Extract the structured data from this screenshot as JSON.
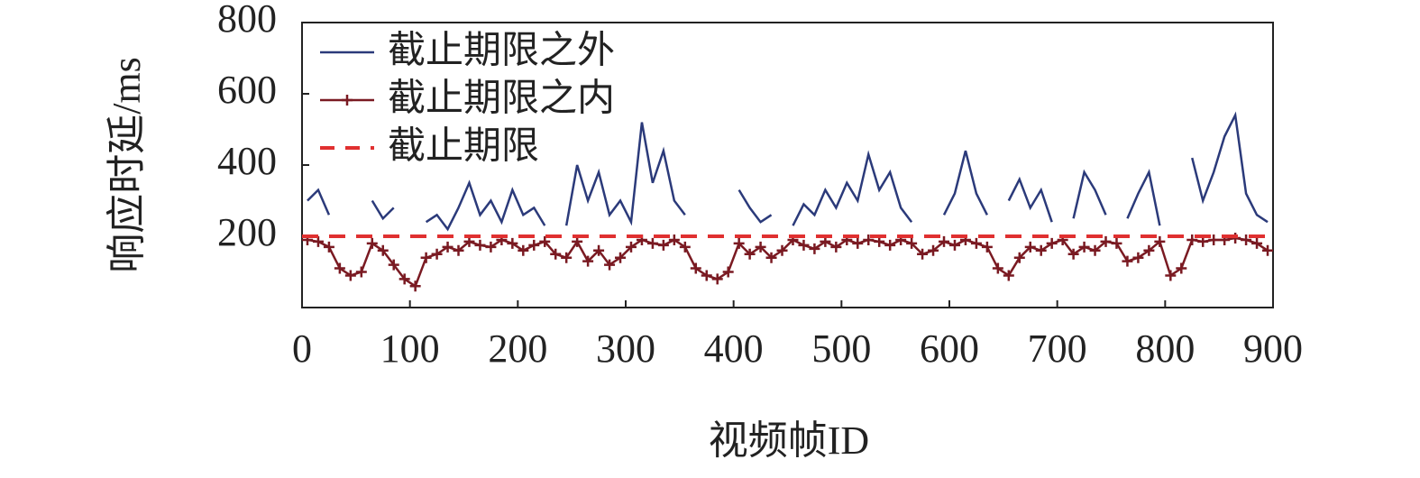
{
  "chart_data": {
    "type": "line",
    "x_label": "视频帧ID",
    "y_label": "响应时延/ms",
    "x": [
      5,
      15,
      25,
      35,
      45,
      55,
      65,
      75,
      85,
      95,
      105,
      115,
      125,
      135,
      145,
      155,
      165,
      175,
      185,
      195,
      205,
      215,
      225,
      235,
      245,
      255,
      265,
      275,
      285,
      295,
      305,
      315,
      325,
      335,
      345,
      355,
      365,
      375,
      385,
      395,
      405,
      415,
      425,
      435,
      445,
      455,
      465,
      475,
      485,
      495,
      505,
      515,
      525,
      535,
      545,
      555,
      565,
      575,
      585,
      595,
      605,
      615,
      625,
      635,
      645,
      655,
      665,
      675,
      685,
      695,
      705,
      715,
      725,
      735,
      745,
      755,
      765,
      775,
      785,
      795,
      805,
      815,
      825,
      835,
      845,
      855,
      865,
      875,
      885,
      895
    ],
    "series": [
      {
        "name": "截止期限之外",
        "color": "#2b3a7a",
        "marker": false,
        "values": [
          300,
          330,
          260,
          null,
          null,
          null,
          300,
          250,
          280,
          null,
          null,
          240,
          260,
          220,
          280,
          350,
          260,
          300,
          240,
          330,
          260,
          280,
          230,
          null,
          230,
          400,
          300,
          380,
          260,
          300,
          240,
          520,
          350,
          440,
          300,
          260,
          null,
          null,
          null,
          null,
          330,
          280,
          240,
          260,
          null,
          230,
          290,
          260,
          330,
          280,
          350,
          300,
          430,
          330,
          380,
          280,
          240,
          null,
          null,
          260,
          320,
          440,
          320,
          260,
          null,
          300,
          360,
          280,
          330,
          240,
          null,
          250,
          380,
          330,
          260,
          null,
          250,
          320,
          380,
          230,
          null,
          null,
          420,
          300,
          380,
          480,
          540,
          320,
          260,
          240
        ]
      },
      {
        "name": "截止期限之内",
        "color": "#7a1a22",
        "marker": true,
        "values": [
          190,
          185,
          170,
          110,
          90,
          100,
          180,
          160,
          120,
          80,
          60,
          140,
          150,
          170,
          160,
          185,
          175,
          170,
          190,
          180,
          160,
          175,
          185,
          150,
          140,
          185,
          130,
          160,
          120,
          140,
          170,
          190,
          180,
          175,
          190,
          170,
          110,
          90,
          80,
          100,
          180,
          150,
          170,
          140,
          160,
          190,
          175,
          165,
          185,
          170,
          190,
          180,
          190,
          185,
          175,
          190,
          180,
          150,
          160,
          185,
          175,
          190,
          180,
          170,
          110,
          90,
          140,
          170,
          160,
          180,
          190,
          150,
          170,
          160,
          185,
          180,
          130,
          140,
          160,
          185,
          90,
          110,
          190,
          185,
          190,
          190,
          195,
          190,
          180,
          160
        ]
      }
    ],
    "threshold": {
      "name": "截止期限",
      "value": 200,
      "color": "#e03030",
      "dashed": true
    },
    "xlim": [
      0,
      900
    ],
    "xticks": [
      0,
      100,
      200,
      300,
      400,
      500,
      600,
      700,
      800,
      900
    ],
    "ylim": [
      0,
      800
    ],
    "yticks": [
      200,
      400,
      600,
      800
    ],
    "legend": "upper left"
  }
}
